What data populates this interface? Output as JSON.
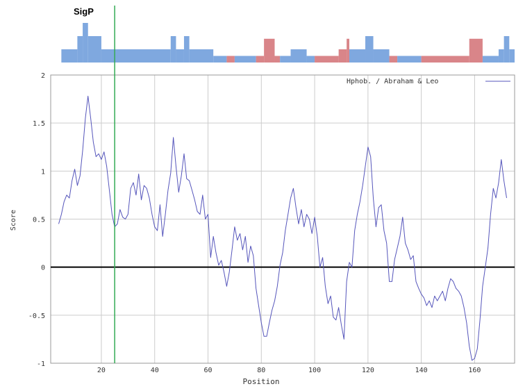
{
  "chart_data": {
    "type": "line",
    "title": "",
    "xlabel": "Position",
    "ylabel": "Score",
    "xlim": [
      1,
      175
    ],
    "ylim": [
      -1,
      2
    ],
    "x_ticks": [
      20,
      40,
      60,
      80,
      100,
      120,
      140,
      160
    ],
    "y_ticks": [
      -1,
      -0.5,
      0,
      0.5,
      1,
      1.5,
      2
    ],
    "y_tick_labels": [
      "-1",
      "-0.5",
      "0",
      "0.5",
      "1",
      "1.5",
      "2"
    ],
    "grid": true,
    "legend_position": "top-right",
    "signal_peptide_label": "SigP",
    "signal_peptide_cleavage_x": 25,
    "series": [
      {
        "name": "Hphob. / Abraham & Leo",
        "color": "#5555bb",
        "points": [
          [
            4,
            0.45
          ],
          [
            5,
            0.55
          ],
          [
            6,
            0.68
          ],
          [
            7,
            0.75
          ],
          [
            8,
            0.72
          ],
          [
            9,
            0.9
          ],
          [
            10,
            1.02
          ],
          [
            11,
            0.85
          ],
          [
            12,
            0.95
          ],
          [
            13,
            1.22
          ],
          [
            14,
            1.55
          ],
          [
            15,
            1.78
          ],
          [
            16,
            1.55
          ],
          [
            17,
            1.3
          ],
          [
            18,
            1.15
          ],
          [
            19,
            1.18
          ],
          [
            20,
            1.12
          ],
          [
            21,
            1.2
          ],
          [
            22,
            1.05
          ],
          [
            23,
            0.8
          ],
          [
            24,
            0.55
          ],
          [
            25,
            0.42
          ],
          [
            26,
            0.45
          ],
          [
            27,
            0.6
          ],
          [
            28,
            0.52
          ],
          [
            29,
            0.5
          ],
          [
            30,
            0.55
          ],
          [
            31,
            0.82
          ],
          [
            32,
            0.88
          ],
          [
            33,
            0.75
          ],
          [
            34,
            0.97
          ],
          [
            35,
            0.7
          ],
          [
            36,
            0.85
          ],
          [
            37,
            0.82
          ],
          [
            38,
            0.72
          ],
          [
            39,
            0.55
          ],
          [
            40,
            0.42
          ],
          [
            41,
            0.38
          ],
          [
            42,
            0.65
          ],
          [
            43,
            0.32
          ],
          [
            44,
            0.55
          ],
          [
            45,
            0.8
          ],
          [
            46,
            0.98
          ],
          [
            47,
            1.35
          ],
          [
            48,
            1.05
          ],
          [
            49,
            0.78
          ],
          [
            50,
            0.95
          ],
          [
            51,
            1.18
          ],
          [
            52,
            0.92
          ],
          [
            53,
            0.9
          ],
          [
            54,
            0.8
          ],
          [
            55,
            0.7
          ],
          [
            56,
            0.58
          ],
          [
            57,
            0.55
          ],
          [
            58,
            0.75
          ],
          [
            59,
            0.5
          ],
          [
            60,
            0.55
          ],
          [
            61,
            0.1
          ],
          [
            62,
            0.32
          ],
          [
            63,
            0.15
          ],
          [
            64,
            0.02
          ],
          [
            65,
            0.07
          ],
          [
            66,
            -0.05
          ],
          [
            67,
            -0.2
          ],
          [
            68,
            -0.05
          ],
          [
            69,
            0.18
          ],
          [
            70,
            0.42
          ],
          [
            71,
            0.28
          ],
          [
            72,
            0.35
          ],
          [
            73,
            0.18
          ],
          [
            74,
            0.32
          ],
          [
            75,
            0.05
          ],
          [
            76,
            0.22
          ],
          [
            77,
            0.12
          ],
          [
            78,
            -0.22
          ],
          [
            79,
            -0.4
          ],
          [
            80,
            -0.58
          ],
          [
            81,
            -0.72
          ],
          [
            82,
            -0.72
          ],
          [
            83,
            -0.58
          ],
          [
            84,
            -0.45
          ],
          [
            85,
            -0.35
          ],
          [
            86,
            -0.2
          ],
          [
            87,
            0.02
          ],
          [
            88,
            0.15
          ],
          [
            89,
            0.38
          ],
          [
            90,
            0.55
          ],
          [
            91,
            0.72
          ],
          [
            92,
            0.82
          ],
          [
            93,
            0.62
          ],
          [
            94,
            0.45
          ],
          [
            95,
            0.6
          ],
          [
            96,
            0.42
          ],
          [
            97,
            0.55
          ],
          [
            98,
            0.5
          ],
          [
            99,
            0.35
          ],
          [
            100,
            0.52
          ],
          [
            101,
            0.32
          ],
          [
            102,
            0.0
          ],
          [
            103,
            0.1
          ],
          [
            104,
            -0.2
          ],
          [
            105,
            -0.38
          ],
          [
            106,
            -0.3
          ],
          [
            107,
            -0.52
          ],
          [
            108,
            -0.55
          ],
          [
            109,
            -0.42
          ],
          [
            110,
            -0.6
          ],
          [
            111,
            -0.75
          ],
          [
            112,
            -0.15
          ],
          [
            113,
            0.05
          ],
          [
            114,
            0.0
          ],
          [
            115,
            0.38
          ],
          [
            116,
            0.55
          ],
          [
            117,
            0.68
          ],
          [
            118,
            0.85
          ],
          [
            119,
            1.05
          ],
          [
            120,
            1.25
          ],
          [
            121,
            1.15
          ],
          [
            122,
            0.72
          ],
          [
            123,
            0.42
          ],
          [
            124,
            0.62
          ],
          [
            125,
            0.65
          ],
          [
            126,
            0.38
          ],
          [
            127,
            0.25
          ],
          [
            128,
            -0.15
          ],
          [
            129,
            -0.15
          ],
          [
            130,
            0.08
          ],
          [
            131,
            0.2
          ],
          [
            132,
            0.32
          ],
          [
            133,
            0.52
          ],
          [
            134,
            0.25
          ],
          [
            135,
            0.18
          ],
          [
            136,
            0.08
          ],
          [
            137,
            0.12
          ],
          [
            138,
            -0.15
          ],
          [
            139,
            -0.22
          ],
          [
            140,
            -0.28
          ],
          [
            141,
            -0.32
          ],
          [
            142,
            -0.4
          ],
          [
            143,
            -0.35
          ],
          [
            144,
            -0.42
          ],
          [
            145,
            -0.3
          ],
          [
            146,
            -0.35
          ],
          [
            147,
            -0.3
          ],
          [
            148,
            -0.25
          ],
          [
            149,
            -0.35
          ],
          [
            150,
            -0.22
          ],
          [
            151,
            -0.12
          ],
          [
            152,
            -0.15
          ],
          [
            153,
            -0.22
          ],
          [
            154,
            -0.25
          ],
          [
            155,
            -0.3
          ],
          [
            156,
            -0.42
          ],
          [
            157,
            -0.58
          ],
          [
            158,
            -0.82
          ],
          [
            159,
            -0.97
          ],
          [
            160,
            -0.95
          ],
          [
            161,
            -0.85
          ],
          [
            162,
            -0.55
          ],
          [
            163,
            -0.2
          ],
          [
            164,
            0.0
          ],
          [
            165,
            0.2
          ],
          [
            166,
            0.55
          ],
          [
            167,
            0.82
          ],
          [
            168,
            0.72
          ],
          [
            169,
            0.88
          ],
          [
            170,
            1.12
          ],
          [
            171,
            0.9
          ],
          [
            172,
            0.72
          ]
        ]
      }
    ],
    "reference_line": {
      "y": 0,
      "color": "#000000"
    },
    "feature_track": {
      "colors": {
        "blue": "#7fa8df",
        "red": "#d98589"
      },
      "base_range": [
        5,
        175
      ],
      "blocks": [
        {
          "x0": 5,
          "x1": 11,
          "level": 1,
          "color": "blue"
        },
        {
          "x0": 11,
          "x1": 13,
          "level": 2,
          "color": "blue"
        },
        {
          "x0": 13,
          "x1": 15,
          "level": 3,
          "color": "blue"
        },
        {
          "x0": 15,
          "x1": 20,
          "level": 2,
          "color": "blue"
        },
        {
          "x0": 20,
          "x1": 46,
          "level": 1,
          "color": "blue"
        },
        {
          "x0": 46,
          "x1": 48,
          "level": 2,
          "color": "blue"
        },
        {
          "x0": 48,
          "x1": 51,
          "level": 1,
          "color": "blue"
        },
        {
          "x0": 51,
          "x1": 53,
          "level": 2,
          "color": "blue"
        },
        {
          "x0": 53,
          "x1": 62,
          "level": 1,
          "color": "blue"
        },
        {
          "x0": 62,
          "x1": 67,
          "level": 0.5,
          "color": "blue"
        },
        {
          "x0": 67,
          "x1": 70,
          "level": 0.5,
          "color": "red"
        },
        {
          "x0": 70,
          "x1": 78,
          "level": 0.5,
          "color": "blue"
        },
        {
          "x0": 78,
          "x1": 81,
          "level": 0.5,
          "color": "red"
        },
        {
          "x0": 81,
          "x1": 85,
          "level": 1.8,
          "color": "red"
        },
        {
          "x0": 85,
          "x1": 87,
          "level": 0.5,
          "color": "red"
        },
        {
          "x0": 87,
          "x1": 91,
          "level": 0.5,
          "color": "blue"
        },
        {
          "x0": 91,
          "x1": 97,
          "level": 1,
          "color": "blue"
        },
        {
          "x0": 97,
          "x1": 100,
          "level": 0.5,
          "color": "blue"
        },
        {
          "x0": 100,
          "x1": 109,
          "level": 0.5,
          "color": "red"
        },
        {
          "x0": 109,
          "x1": 112,
          "level": 1,
          "color": "red"
        },
        {
          "x0": 112,
          "x1": 113,
          "level": 1.8,
          "color": "red"
        },
        {
          "x0": 113,
          "x1": 119,
          "level": 1,
          "color": "blue"
        },
        {
          "x0": 119,
          "x1": 122,
          "level": 2,
          "color": "blue"
        },
        {
          "x0": 122,
          "x1": 128,
          "level": 1,
          "color": "blue"
        },
        {
          "x0": 128,
          "x1": 131,
          "level": 0.5,
          "color": "red"
        },
        {
          "x0": 131,
          "x1": 140,
          "level": 0.5,
          "color": "blue"
        },
        {
          "x0": 140,
          "x1": 158,
          "level": 0.5,
          "color": "red"
        },
        {
          "x0": 158,
          "x1": 163,
          "level": 1.8,
          "color": "red"
        },
        {
          "x0": 163,
          "x1": 169,
          "level": 0.5,
          "color": "blue"
        },
        {
          "x0": 169,
          "x1": 171,
          "level": 1,
          "color": "blue"
        },
        {
          "x0": 171,
          "x1": 173,
          "level": 2,
          "color": "blue"
        },
        {
          "x0": 173,
          "x1": 175,
          "level": 1,
          "color": "blue"
        }
      ]
    }
  }
}
